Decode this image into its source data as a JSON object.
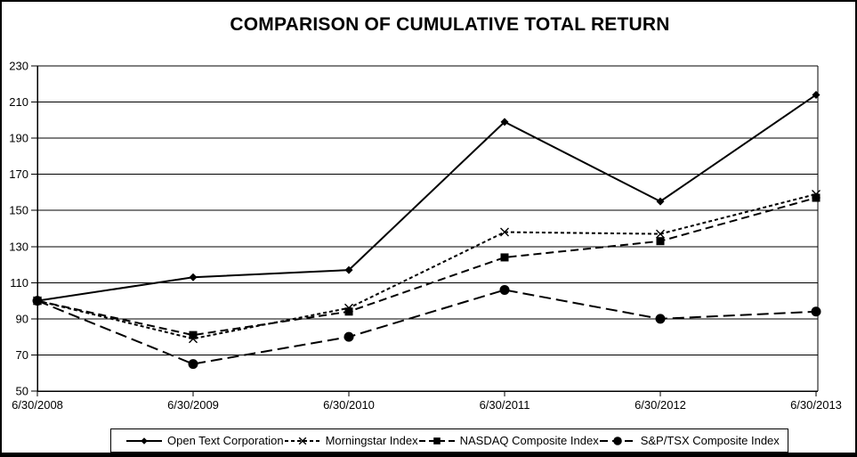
{
  "title": "COMPARISON OF CUMULATIVE TOTAL RETURN",
  "colors": {
    "foreground": "#000000",
    "background": "#ffffff"
  },
  "chart_data": {
    "type": "line",
    "title": "COMPARISON OF CUMULATIVE TOTAL RETURN",
    "categories": [
      "6/30/2008",
      "6/30/2009",
      "6/30/2010",
      "6/30/2011",
      "6/30/2012",
      "6/30/2013"
    ],
    "series": [
      {
        "name": "Open Text Corporation",
        "marker": "diamond",
        "line_style": "solid",
        "values": [
          100,
          113,
          117,
          199,
          155,
          214
        ]
      },
      {
        "name": "Morningstar Index",
        "marker": "x",
        "line_style": "short-dash",
        "values": [
          100,
          79,
          96,
          138,
          137,
          159
        ]
      },
      {
        "name": "NASDAQ Composite Index",
        "marker": "square",
        "line_style": "dash",
        "values": [
          100,
          81,
          94,
          124,
          133,
          157
        ]
      },
      {
        "name": "S&P/TSX Composite Index",
        "marker": "circle",
        "line_style": "long-dash",
        "values": [
          100,
          65,
          80,
          106,
          90,
          94
        ]
      }
    ],
    "ylim": [
      50,
      230
    ],
    "ytick_step": 20,
    "ytick_labels": [
      "50",
      "70",
      "90",
      "110",
      "130",
      "150",
      "170",
      "190",
      "210",
      "230"
    ],
    "xlabel": "",
    "ylabel": "",
    "grid": "horizontal",
    "legend_position": "bottom"
  }
}
